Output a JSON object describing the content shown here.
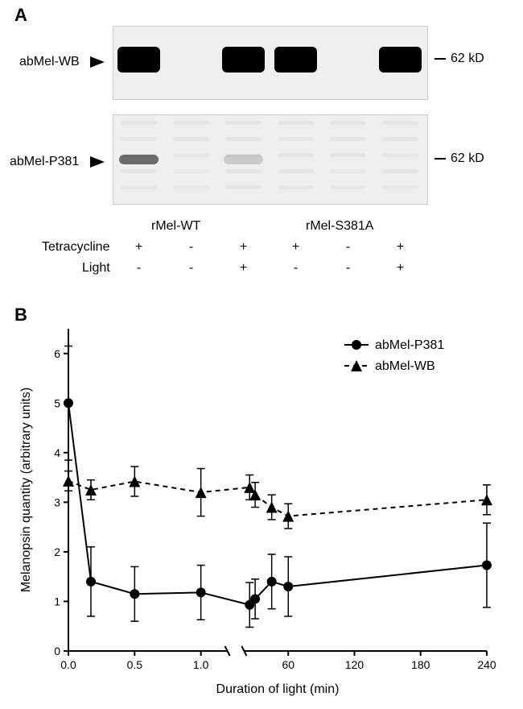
{
  "panelA": {
    "label": "A",
    "blot1": {
      "antibody_label": "abMel-WB",
      "mw_label": "62 kD",
      "lanes": [
        {
          "band": true,
          "intensity": 1.0
        },
        {
          "band": false,
          "intensity": 0.0
        },
        {
          "band": true,
          "intensity": 1.0
        },
        {
          "band": true,
          "intensity": 1.0
        },
        {
          "band": false,
          "intensity": 0.0
        },
        {
          "band": true,
          "intensity": 1.0
        }
      ]
    },
    "blot2": {
      "antibody_label": "abMel-P381",
      "mw_label": "62 kD",
      "lanes": [
        {
          "band": true,
          "intensity": 0.55
        },
        {
          "band": false,
          "intensity": 0.0
        },
        {
          "band": true,
          "intensity": 0.15
        },
        {
          "band": false,
          "intensity": 0.0
        },
        {
          "band": false,
          "intensity": 0.0
        },
        {
          "band": false,
          "intensity": 0.0
        }
      ]
    },
    "group_labels": [
      "rMel-WT",
      "rMel-S381A"
    ],
    "row_labels": [
      "Tetracycline",
      "Light"
    ],
    "tet_row": [
      "+",
      "-",
      "+",
      "+",
      "-",
      "+"
    ],
    "light_row": [
      "-",
      "-",
      "+",
      "-",
      "-",
      "+"
    ]
  },
  "panelB": {
    "label": "B",
    "type": "line",
    "xlabel": "Duration of light (min)",
    "ylabel": "Melanopsin quantity (arbitrary units)",
    "xlim_left": [
      0,
      1.2
    ],
    "xlim_right": [
      20,
      240
    ],
    "ylim": [
      0,
      6.5
    ],
    "ytick_step": 1,
    "xticks_left": [
      0,
      0.5,
      1.0
    ],
    "xticks_right": [
      60,
      120,
      180,
      240
    ],
    "legend": [
      {
        "label": "abMel-P381",
        "marker": "circle",
        "dash": "solid"
      },
      {
        "label": "abMel-WB",
        "marker": "triangle",
        "dash": "dashed"
      }
    ],
    "series": {
      "abMel_P381": {
        "marker": "circle",
        "dash": "solid",
        "color": "#000000",
        "points": [
          {
            "x": 0.0,
            "y": 5.0,
            "err": 1.15
          },
          {
            "x": 0.17,
            "y": 1.4,
            "err": 0.7
          },
          {
            "x": 0.5,
            "y": 1.15,
            "err": 0.55
          },
          {
            "x": 1.0,
            "y": 1.18,
            "err": 0.55
          },
          {
            "x": 25,
            "y": 0.93,
            "err": 0.45
          },
          {
            "x": 30,
            "y": 1.05,
            "err": 0.4
          },
          {
            "x": 45,
            "y": 1.4,
            "err": 0.55
          },
          {
            "x": 60,
            "y": 1.3,
            "err": 0.6
          },
          {
            "x": 240,
            "y": 1.73,
            "err": 0.85
          }
        ]
      },
      "abMel_WB": {
        "marker": "triangle",
        "dash": "dashed",
        "color": "#000000",
        "points": [
          {
            "x": 0.0,
            "y": 3.43,
            "err": 0.2
          },
          {
            "x": 0.17,
            "y": 3.25,
            "err": 0.2
          },
          {
            "x": 0.5,
            "y": 3.42,
            "err": 0.3
          },
          {
            "x": 1.0,
            "y": 3.2,
            "err": 0.48
          },
          {
            "x": 25,
            "y": 3.3,
            "err": 0.25
          },
          {
            "x": 30,
            "y": 3.15,
            "err": 0.25
          },
          {
            "x": 45,
            "y": 2.9,
            "err": 0.25
          },
          {
            "x": 60,
            "y": 2.72,
            "err": 0.25
          },
          {
            "x": 240,
            "y": 3.05,
            "err": 0.3
          }
        ]
      }
    },
    "style": {
      "axis_color": "#000000",
      "marker_size": 6,
      "line_width": 2,
      "err_cap": 5,
      "font_axis": 16,
      "font_tick": 14,
      "font_legend": 16
    }
  }
}
